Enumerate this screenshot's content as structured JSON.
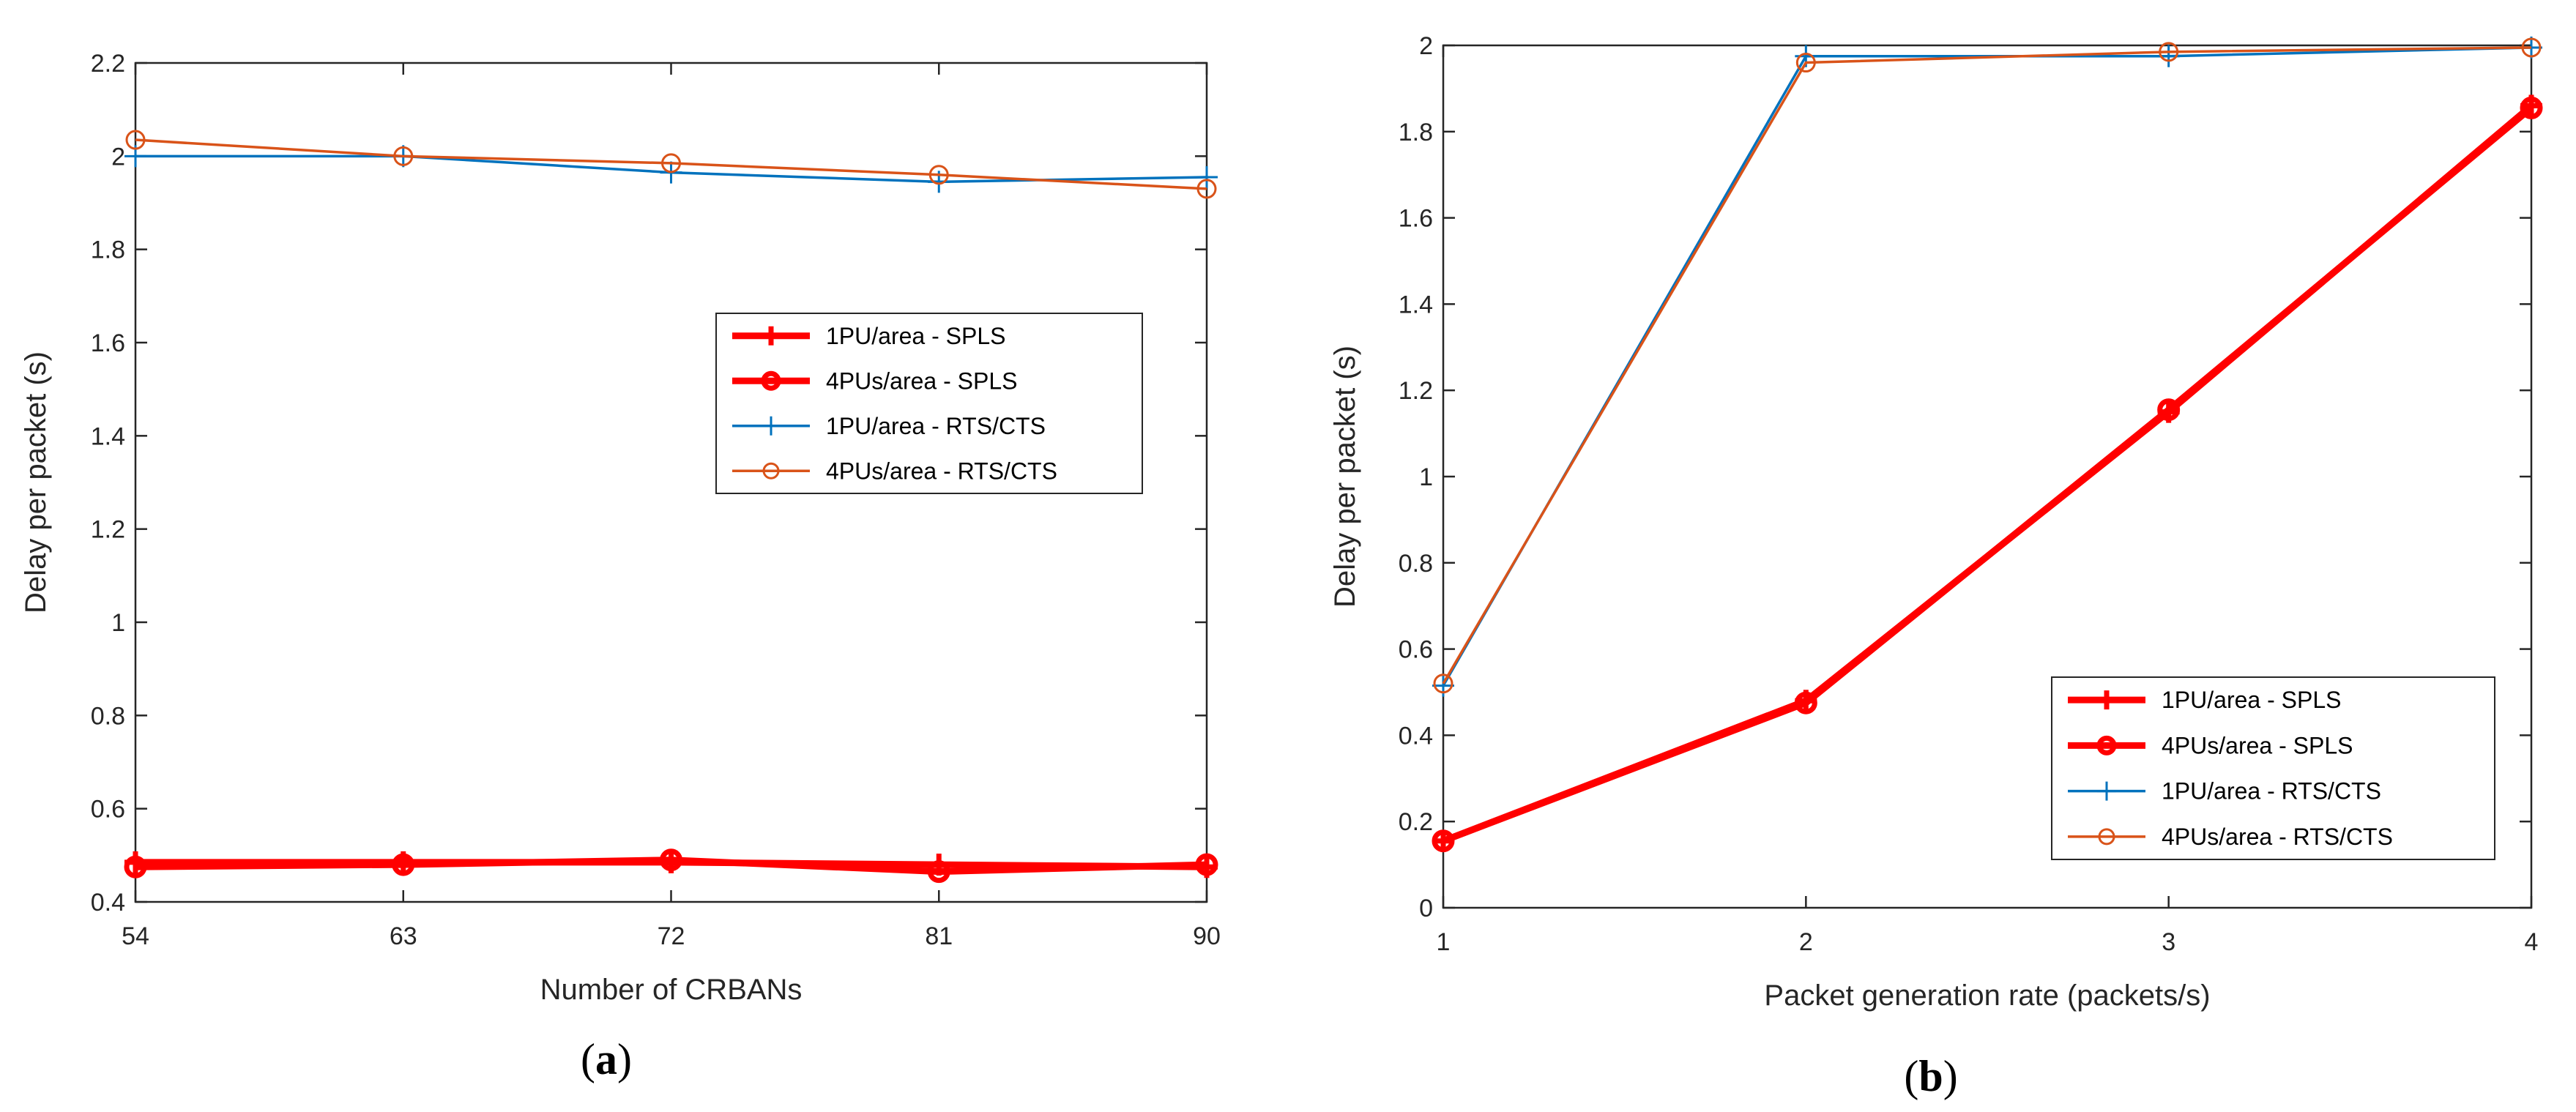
{
  "colors": {
    "spls": "#ff0000",
    "rts_1pu": "#0072bd",
    "rts_4pu": "#d95319",
    "axis": "#262626"
  },
  "chart_data": [
    {
      "type": "line",
      "panel_label": "a",
      "xlabel": "Number of CRBANs",
      "ylabel": "Delay per packet (s)",
      "x": [
        54,
        63,
        72,
        81,
        90
      ],
      "xticks": [
        "54",
        "63",
        "72",
        "81",
        "90"
      ],
      "xlim": [
        54,
        90
      ],
      "ylim": [
        0.4,
        2.2
      ],
      "yticks": [
        "0.4",
        "0.6",
        "0.8",
        "1",
        "1.2",
        "1.4",
        "1.6",
        "1.8",
        "2",
        "2.2"
      ],
      "legend_position": "right-middle",
      "series": [
        {
          "name": "1PU/area - SPLS",
          "values": [
            0.485,
            0.485,
            0.485,
            0.48,
            0.475
          ]
        },
        {
          "name": "4PUs/area - SPLS",
          "values": [
            0.475,
            0.48,
            0.49,
            0.465,
            0.48
          ]
        },
        {
          "name": "1PU/area - RTS/CTS",
          "values": [
            2.0,
            2.0,
            1.965,
            1.945,
            1.955
          ]
        },
        {
          "name": "4PUs/area - RTS/CTS",
          "values": [
            2.035,
            2.0,
            1.985,
            1.96,
            1.93
          ]
        }
      ]
    },
    {
      "type": "line",
      "panel_label": "b",
      "xlabel": "Packet generation rate (packets/s)",
      "ylabel": "Delay per packet (s)",
      "x": [
        1,
        2,
        3,
        4
      ],
      "xticks": [
        "1",
        "2",
        "3",
        "4"
      ],
      "xlim": [
        1,
        4
      ],
      "ylim": [
        0,
        2
      ],
      "yticks": [
        "0",
        "0.2",
        "0.4",
        "0.6",
        "0.8",
        "1",
        "1.2",
        "1.4",
        "1.6",
        "1.8",
        "2"
      ],
      "legend_position": "bottom-right",
      "series": [
        {
          "name": "1PU/area - SPLS",
          "values": [
            0.155,
            0.48,
            1.15,
            1.86
          ]
        },
        {
          "name": "4PUs/area - SPLS",
          "values": [
            0.155,
            0.475,
            1.155,
            1.855
          ]
        },
        {
          "name": "1PU/area - RTS/CTS",
          "values": [
            0.515,
            1.975,
            1.975,
            1.995
          ]
        },
        {
          "name": "4PUs/area - RTS/CTS",
          "values": [
            0.52,
            1.96,
            1.985,
            1.995
          ]
        }
      ]
    }
  ]
}
